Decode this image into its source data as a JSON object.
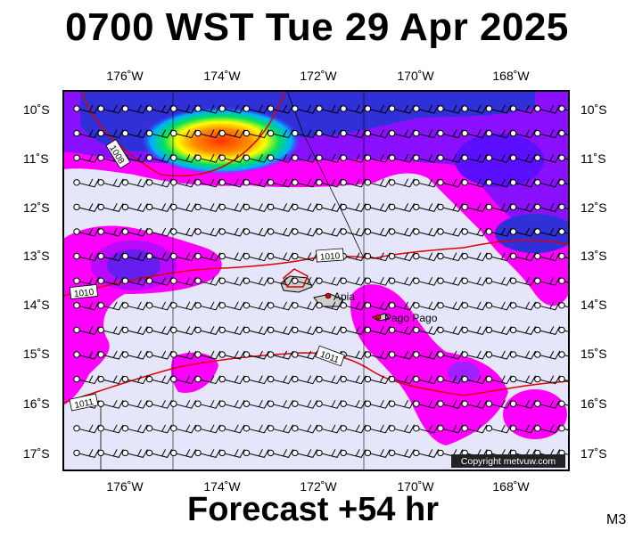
{
  "header": {
    "title": "0700 WST Tue 29 Apr 2025"
  },
  "footer": {
    "forecast_label": "Forecast +54 hr",
    "model_label": "M3"
  },
  "map": {
    "lon_labels": [
      "176˚W",
      "174˚W",
      "172˚W",
      "170˚W",
      "168˚W"
    ],
    "lat_labels": [
      "10˚S",
      "11˚S",
      "12˚S",
      "13˚S",
      "14˚S",
      "15˚S",
      "16˚S",
      "17˚S"
    ],
    "isobar_labels": [
      "1008",
      "1010",
      "1010",
      "1011",
      "1011"
    ],
    "places": [
      "Apia",
      "Pago Pago"
    ],
    "copyright": "Copyright metvuw.com"
  },
  "colors": {
    "ocean": "#e6e6fb",
    "rain_light": "#ff00ff",
    "rain_medium": "#7f00ff",
    "rain_heavy": "#2020d0",
    "isobar": "#e00000",
    "wind_barb": "#000000"
  }
}
